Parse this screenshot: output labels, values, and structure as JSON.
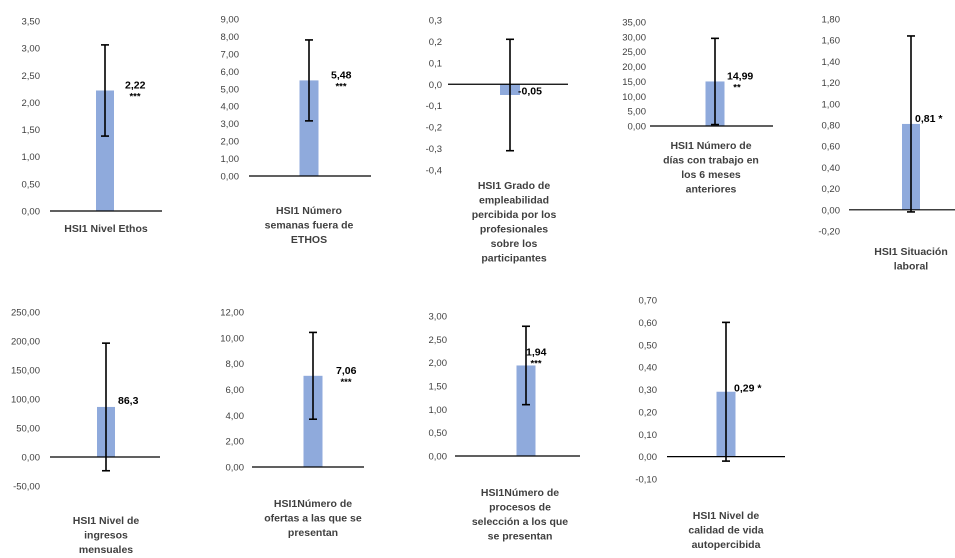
{
  "chart_data": [
    {
      "type": "bar",
      "categories": [
        "HSI1 Nivel Ethos"
      ],
      "values": [
        2.22
      ],
      "error": [
        0.84
      ],
      "data_label": "2,22",
      "significance": "***",
      "title_lines": [
        "HSI1 Nivel Ethos"
      ],
      "ylim": [
        0,
        3.5
      ],
      "yticks": [
        "0,00",
        "0,50",
        "1,00",
        "1,50",
        "2,00",
        "2,50",
        "3,00",
        "3,50"
      ],
      "bar_color": "#8faadc"
    },
    {
      "type": "bar",
      "categories": [
        "HSI1 Número semanas fuera de ETHOS"
      ],
      "values": [
        5.48
      ],
      "error": [
        2.32
      ],
      "data_label": "5,48",
      "significance": "***",
      "title_lines": [
        "HSI1 Número",
        "semanas fuera de",
        "ETHOS"
      ],
      "ylim": [
        0,
        9
      ],
      "yticks": [
        "0,00",
        "1,00",
        "2,00",
        "3,00",
        "4,00",
        "5,00",
        "6,00",
        "7,00",
        "8,00",
        "9,00"
      ],
      "bar_color": "#8faadc"
    },
    {
      "type": "bar",
      "categories": [
        "HSI1 Grado de empleabilidad percibida por los profesionales sobre los participantes"
      ],
      "values": [
        -0.05
      ],
      "error": [
        0.26
      ],
      "data_label": "-0,05",
      "significance": "",
      "title_lines": [
        "HSI1 Grado de",
        "empleabilidad",
        "percibida por los",
        "profesionales",
        "sobre los",
        "participantes"
      ],
      "ylim": [
        -0.4,
        0.3
      ],
      "yticks": [
        "-0,4",
        "-0,3",
        "-0,2",
        "-0,1",
        "0,0",
        "0,1",
        "0,2",
        "0,3"
      ],
      "bar_color": "#8faadc"
    },
    {
      "type": "bar",
      "categories": [
        "HSI1 Número de días con trabajo en los 6 meses anteriores"
      ],
      "values": [
        14.99
      ],
      "error": [
        14.51
      ],
      "data_label": "14,99",
      "significance": "**",
      "title_lines": [
        "HSI1 Número de",
        "días con trabajo en",
        "los 6 meses",
        "anteriores"
      ],
      "ylim": [
        0,
        35
      ],
      "yticks": [
        "0,00",
        "5,00",
        "10,00",
        "15,00",
        "20,00",
        "25,00",
        "30,00",
        "35,00"
      ],
      "bar_color": "#8faadc"
    },
    {
      "type": "bar",
      "categories": [
        "HSI1 Situación laboral"
      ],
      "values": [
        0.81
      ],
      "error": [
        0.83
      ],
      "data_label": "0,81 *",
      "significance": "",
      "title_lines": [
        "HSI1 Situación",
        "laboral"
      ],
      "ylim": [
        -0.2,
        1.8
      ],
      "yticks": [
        "-0,20",
        "0,00",
        "0,20",
        "0,40",
        "0,60",
        "0,80",
        "1,00",
        "1,20",
        "1,40",
        "1,60",
        "1,80"
      ],
      "bar_color": "#8faadc"
    },
    {
      "type": "bar",
      "categories": [
        "HSI1 Nivel de ingresos mensuales"
      ],
      "values": [
        86.3
      ],
      "error": [
        110
      ],
      "data_label": "86,3",
      "significance": "",
      "title_lines": [
        "HSI1 Nivel de",
        "ingresos",
        "mensuales"
      ],
      "ylim": [
        -50,
        250
      ],
      "yticks": [
        "-50,00",
        "0,00",
        "50,00",
        "100,00",
        "150,00",
        "200,00",
        "250,00"
      ],
      "bar_color": "#8faadc"
    },
    {
      "type": "bar",
      "categories": [
        "HSI1Número de ofertas a las que se presentan"
      ],
      "values": [
        7.06
      ],
      "error": [
        3.36
      ],
      "data_label": "7,06",
      "significance": "***",
      "title_lines": [
        "HSI1Número de",
        "ofertas a las que se",
        "presentan"
      ],
      "ylim": [
        0,
        12
      ],
      "yticks": [
        "0,00",
        "2,00",
        "4,00",
        "6,00",
        "8,00",
        "10,00",
        "12,00"
      ],
      "bar_color": "#8faadc"
    },
    {
      "type": "bar",
      "categories": [
        "HSI1Número de procesos de selección a los que se presentan"
      ],
      "values": [
        1.94
      ],
      "error": [
        0.84
      ],
      "data_label": "1,94",
      "significance": "***",
      "title_lines": [
        "HSI1Número de",
        "procesos de",
        "selección a los que",
        "se presentan"
      ],
      "ylim": [
        0,
        3
      ],
      "yticks": [
        "0,00",
        "0,50",
        "1,00",
        "1,50",
        "2,00",
        "2,50",
        "3,00"
      ],
      "bar_color": "#8faadc"
    },
    {
      "type": "bar",
      "categories": [
        "HSI1 Nivel de calidad de vida autopercibida"
      ],
      "values": [
        0.29
      ],
      "error": [
        0.31
      ],
      "data_label": "0,29 *",
      "significance": "",
      "title_lines": [
        "HSI1 Nivel de",
        "calidad de vida",
        "autopercibida"
      ],
      "ylim": [
        -0.1,
        0.7
      ],
      "yticks": [
        "-0,10",
        "0,00",
        "0,10",
        "0,20",
        "0,30",
        "0,40",
        "0,50",
        "0,60",
        "0,70"
      ],
      "bar_color": "#8faadc"
    }
  ]
}
